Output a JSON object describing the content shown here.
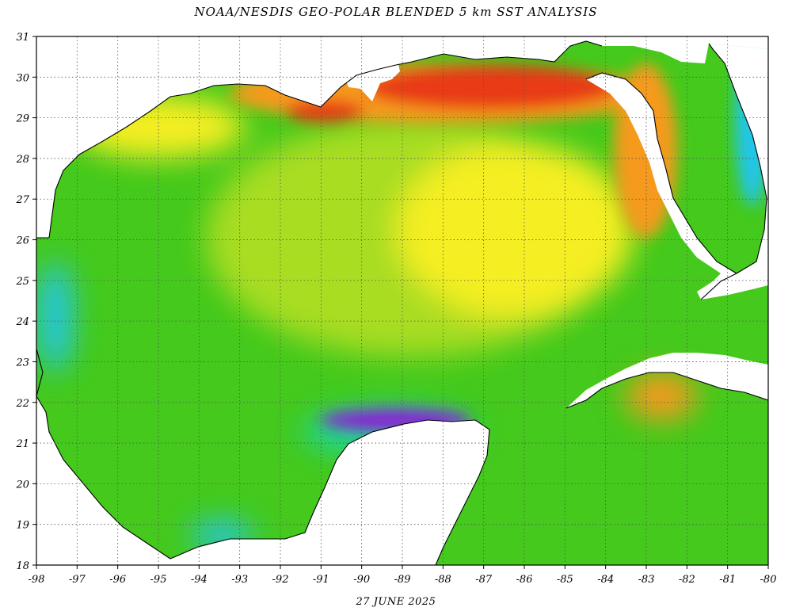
{
  "title": "NOAA/NESDIS GEO-POLAR BLENDED 5 km SST ANALYSIS",
  "date": "27 JUNE 2025",
  "map": {
    "lon_range": [
      -98,
      -80
    ],
    "lat_range": [
      18,
      31
    ],
    "lon_ticks": [
      "-98",
      "-97",
      "-96",
      "-95",
      "-94",
      "-93",
      "-92",
      "-91",
      "-90",
      "-89",
      "-88",
      "-87",
      "-86",
      "-85",
      "-84",
      "-83",
      "-82",
      "-81",
      "-80"
    ],
    "lat_ticks": [
      "31",
      "30",
      "29",
      "28",
      "27",
      "26",
      "25",
      "24",
      "23",
      "22",
      "21",
      "20",
      "19",
      "18"
    ],
    "grid": "dotted",
    "land_color": "#ffffff",
    "palette": {
      "warmest": "#e83a14",
      "warm": "#f59a1c",
      "mid_warm": "#f4ee20",
      "mid": "#a8dd22",
      "base": "#44c91c",
      "cool": "#1ed69a",
      "cooler": "#22c6e8",
      "coolest": "#8a22d6"
    },
    "regions": [
      {
        "name": "northern-shelf",
        "level": "warmest"
      },
      {
        "name": "west-florida-shelf",
        "level": "warm"
      },
      {
        "name": "eastern-gulf",
        "level": "mid_warm"
      },
      {
        "name": "central-gulf",
        "level": "mid"
      },
      {
        "name": "western-gulf",
        "level": "base"
      },
      {
        "name": "campeche-bank-upwelling",
        "level": "coolest"
      },
      {
        "name": "mexico-coast",
        "level": "cool"
      },
      {
        "name": "atlantic-florida-coast",
        "level": "cooler"
      }
    ]
  }
}
